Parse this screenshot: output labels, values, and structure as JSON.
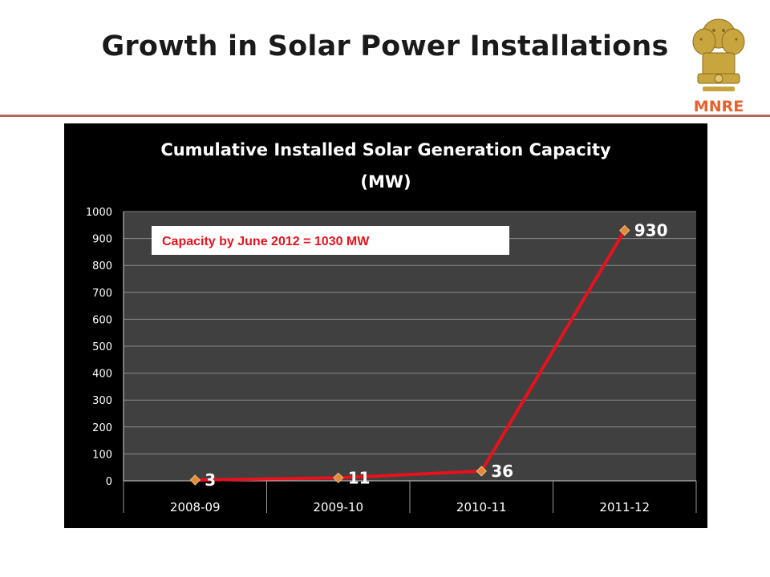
{
  "slide": {
    "title": "Growth in Solar Power Installations",
    "emblem_text": "MNRE",
    "emblem_icon": "national-emblem-icon"
  },
  "colors": {
    "rule": "#b9625f",
    "plot_bg": "#404040",
    "line": "#e8111c",
    "marker": "#e08a3c",
    "annotation_text": "#e8111c",
    "emblem_text": "#e8602a"
  },
  "chart_data": {
    "type": "line",
    "title_lines": [
      "Cumulative Installed Solar Generation Capacity",
      "(MW)"
    ],
    "categories": [
      "2008-09",
      "2009-10",
      "2010-11",
      "2011-12"
    ],
    "series": [
      {
        "values": [
          3,
          11,
          36,
          930
        ],
        "labels": [
          "3",
          "11",
          "36",
          "930"
        ]
      }
    ],
    "ylim": [
      0,
      1000
    ],
    "yticks": [
      0,
      100,
      200,
      300,
      400,
      500,
      600,
      700,
      800,
      900,
      1000
    ],
    "grid": true,
    "legend": "none",
    "annotation": "Capacity by June 2012 = 1030 MW"
  }
}
